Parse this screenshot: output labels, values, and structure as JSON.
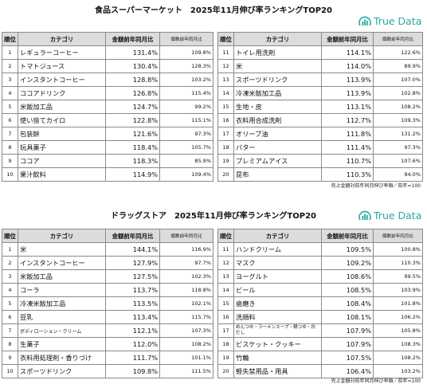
{
  "supermarket": {
    "title": "食品スーパーマーケット　2025年11月伸び率ランキングTOP20",
    "logo": "True Data",
    "headers": {
      "rank": "順位",
      "category": "カテゴリ",
      "amount": "金額前年同月比",
      "count": "個数前年同月比"
    },
    "left": [
      {
        "rank": "1",
        "category": "レギュラーコーヒー",
        "amount": "131.4%",
        "count": "109.8%"
      },
      {
        "rank": "2",
        "category": "トマトジュース",
        "amount": "130.4%",
        "count": "128.3%"
      },
      {
        "rank": "3",
        "category": "インスタントコーヒー",
        "amount": "128.8%",
        "count": "103.2%"
      },
      {
        "rank": "4",
        "category": "ココアドリンク",
        "amount": "126.8%",
        "count": "115.4%"
      },
      {
        "rank": "5",
        "category": "米飯加工品",
        "amount": "124.7%",
        "count": "99.2%"
      },
      {
        "rank": "6",
        "category": "使い捨てカイロ",
        "amount": "122.8%",
        "count": "115.1%"
      },
      {
        "rank": "7",
        "category": "包装餅",
        "amount": "121.6%",
        "count": "97.3%"
      },
      {
        "rank": "8",
        "category": "玩具菓子",
        "amount": "118.4%",
        "count": "105.7%"
      },
      {
        "rank": "9",
        "category": "ココア",
        "amount": "118.3%",
        "count": "85.9%"
      },
      {
        "rank": "10",
        "category": "果汁飲料",
        "amount": "114.9%",
        "count": "109.4%"
      }
    ],
    "right": [
      {
        "rank": "11",
        "category": "トイレ用洗剤",
        "amount": "114.1%",
        "count": "122.6%"
      },
      {
        "rank": "12",
        "category": "米",
        "amount": "114.0%",
        "count": "89.9%"
      },
      {
        "rank": "13",
        "category": "スポーツドリンク",
        "amount": "113.9%",
        "count": "107.0%"
      },
      {
        "rank": "14",
        "category": "冷凍米飯加工品",
        "amount": "113.9%",
        "count": "102.8%"
      },
      {
        "rank": "15",
        "category": "生地・皮",
        "amount": "113.1%",
        "count": "108.2%"
      },
      {
        "rank": "16",
        "category": "衣料用合成洗剤",
        "amount": "112.7%",
        "count": "109.3%"
      },
      {
        "rank": "17",
        "category": "オリーブ油",
        "amount": "111.8%",
        "count": "131.2%"
      },
      {
        "rank": "18",
        "category": "バター",
        "amount": "111.4%",
        "count": "97.3%"
      },
      {
        "rank": "19",
        "category": "プレミアムアイス",
        "amount": "110.7%",
        "count": "107.6%"
      },
      {
        "rank": "20",
        "category": "昆布",
        "amount": "110.3%",
        "count": "94.0%"
      }
    ],
    "note": "売上金額対前年同月伸び率順／前年=100"
  },
  "drugstore": {
    "title": "ドラッグストア　2025年11月伸び率ランキングTOP20",
    "logo": "True Data",
    "headers": {
      "rank": "順位",
      "category": "カテゴリ",
      "amount": "金額前年同月比",
      "count": "個数前年同月比"
    },
    "left": [
      {
        "rank": "1",
        "category": "米",
        "amount": "144.1%",
        "count": "116.9%"
      },
      {
        "rank": "2",
        "category": "インスタントコーヒー",
        "amount": "127.9%",
        "count": "97.7%"
      },
      {
        "rank": "3",
        "category": "米飯加工品",
        "amount": "127.5%",
        "count": "102.3%"
      },
      {
        "rank": "4",
        "category": "コーラ",
        "amount": "113.7%",
        "count": "118.8%"
      },
      {
        "rank": "5",
        "category": "冷凍米飯加工品",
        "amount": "113.5%",
        "count": "102.1%"
      },
      {
        "rank": "6",
        "category": "豆乳",
        "amount": "113.4%",
        "count": "115.7%"
      },
      {
        "rank": "7",
        "category": "ボディローション・クリーム",
        "amount": "112.1%",
        "count": "107.3%"
      },
      {
        "rank": "8",
        "category": "生菓子",
        "amount": "112.0%",
        "count": "108.2%"
      },
      {
        "rank": "9",
        "category": "衣料用処理剤・香りづけ",
        "amount": "111.7%",
        "count": "101.1%"
      },
      {
        "rank": "10",
        "category": "スポーツドリンク",
        "amount": "109.8%",
        "count": "111.5%"
      }
    ],
    "right": [
      {
        "rank": "11",
        "category": "ハンドクリーム",
        "amount": "109.5%",
        "count": "100.8%"
      },
      {
        "rank": "12",
        "category": "マスク",
        "amount": "109.2%",
        "count": "110.3%"
      },
      {
        "rank": "13",
        "category": "ヨーグルト",
        "amount": "108.6%",
        "count": "99.5%"
      },
      {
        "rank": "14",
        "category": "ビール",
        "amount": "108.5%",
        "count": "103.9%"
      },
      {
        "rank": "15",
        "category": "歯磨き",
        "amount": "108.4%",
        "count": "101.8%"
      },
      {
        "rank": "16",
        "category": "洗顔料",
        "amount": "108.1%",
        "count": "106.2%"
      },
      {
        "rank": "17",
        "category": "めんつゆ・ラーメンスープ・鍋つゆ・白だし",
        "amount": "107.9%",
        "count": "105.8%"
      },
      {
        "rank": "18",
        "category": "ビスケット・クッキー",
        "amount": "107.9%",
        "count": "108.3%"
      },
      {
        "rank": "19",
        "category": "竹輪",
        "amount": "107.5%",
        "count": "108.2%"
      },
      {
        "rank": "20",
        "category": "軽失禁用品・用具",
        "amount": "106.4%",
        "count": "103.2%"
      }
    ],
    "note": "売上金額対前年同月伸び率順／前年=100"
  }
}
